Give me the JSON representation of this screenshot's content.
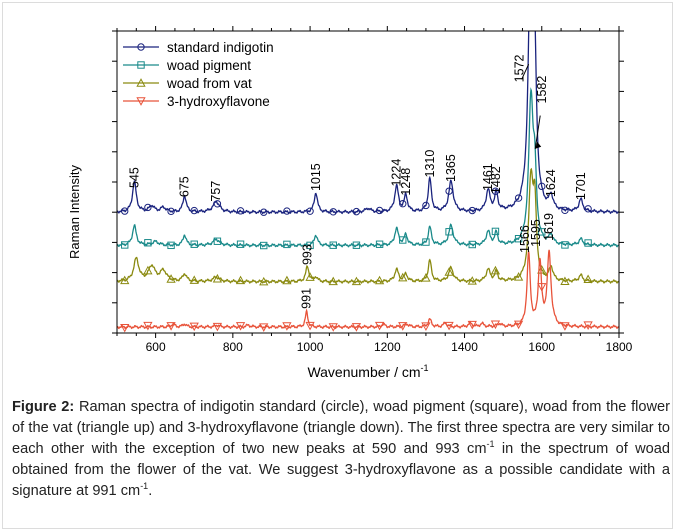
{
  "chart_data": {
    "type": "line",
    "xlabel": "Wavenumber / cm",
    "xlabel_sup": "-1",
    "ylabel": "Raman Intensity",
    "xlim": [
      500,
      1800
    ],
    "ylim": [
      0,
      10
    ],
    "x_ticks": [
      600,
      800,
      1000,
      1200,
      1400,
      1600,
      1800
    ],
    "y_ticks": [
      0,
      1,
      2,
      3,
      4,
      5,
      6,
      7,
      8,
      9,
      10
    ],
    "grid": false,
    "legend_position": "top-left",
    "series": [
      {
        "name": "standard indigotin",
        "color": "#1a237e",
        "marker": "circle",
        "baseline": 4.0,
        "peaks": [
          [
            545,
            1.0,
            6
          ],
          [
            590,
            0.2,
            8
          ],
          [
            620,
            0.15,
            8
          ],
          [
            675,
            0.55,
            5
          ],
          [
            757,
            0.35,
            10
          ],
          [
            1015,
            0.65,
            5
          ],
          [
            1150,
            0.12,
            8
          ],
          [
            1224,
            0.85,
            6
          ],
          [
            1248,
            0.55,
            5
          ],
          [
            1310,
            1.1,
            5
          ],
          [
            1365,
            1.0,
            7
          ],
          [
            1461,
            0.7,
            6
          ],
          [
            1482,
            0.6,
            5
          ],
          [
            1572,
            9.6,
            7
          ],
          [
            1582,
            3.5,
            5
          ],
          [
            1624,
            0.45,
            6
          ],
          [
            1701,
            0.4,
            6
          ]
        ]
      },
      {
        "name": "woad pigment",
        "color": "#1a8a8a",
        "marker": "square",
        "baseline": 2.9,
        "peaks": [
          [
            545,
            0.65,
            6
          ],
          [
            600,
            0.12,
            10
          ],
          [
            675,
            0.35,
            5
          ],
          [
            757,
            0.2,
            10
          ],
          [
            1015,
            0.35,
            5
          ],
          [
            1224,
            0.55,
            6
          ],
          [
            1248,
            0.35,
            5
          ],
          [
            1310,
            0.6,
            5
          ],
          [
            1365,
            0.65,
            7
          ],
          [
            1461,
            0.45,
            6
          ],
          [
            1482,
            0.4,
            5
          ],
          [
            1572,
            4.8,
            7
          ],
          [
            1582,
            1.9,
            5
          ],
          [
            1624,
            0.3,
            6
          ],
          [
            1701,
            0.2,
            6
          ]
        ]
      },
      {
        "name": "woad from vat",
        "color": "#8a8a10",
        "marker": "triangle-up",
        "baseline": 1.7,
        "peaks": [
          [
            550,
            0.75,
            8
          ],
          [
            590,
            0.5,
            10
          ],
          [
            620,
            0.35,
            10
          ],
          [
            675,
            0.25,
            6
          ],
          [
            757,
            0.15,
            10
          ],
          [
            993,
            0.5,
            5
          ],
          [
            1015,
            0.15,
            5
          ],
          [
            1224,
            0.4,
            6
          ],
          [
            1248,
            0.25,
            5
          ],
          [
            1310,
            0.7,
            5
          ],
          [
            1365,
            0.45,
            7
          ],
          [
            1461,
            0.4,
            6
          ],
          [
            1482,
            0.3,
            5
          ],
          [
            1572,
            3.3,
            7
          ],
          [
            1582,
            2.2,
            5
          ],
          [
            1624,
            0.45,
            6
          ],
          [
            1701,
            0.2,
            6
          ]
        ]
      },
      {
        "name": "3-hydroxyflavone",
        "color": "#e8533a",
        "marker": "triangle-down",
        "baseline": 0.2,
        "peaks": [
          [
            645,
            0.1,
            5
          ],
          [
            675,
            0.1,
            5
          ],
          [
            760,
            0.06,
            6
          ],
          [
            840,
            0.06,
            6
          ],
          [
            991,
            0.5,
            4
          ],
          [
            1190,
            0.08,
            6
          ],
          [
            1250,
            0.1,
            6
          ],
          [
            1310,
            0.25,
            5
          ],
          [
            1350,
            0.12,
            6
          ],
          [
            1415,
            0.12,
            6
          ],
          [
            1445,
            0.1,
            6
          ],
          [
            1490,
            0.1,
            6
          ],
          [
            1566,
            2.4,
            5
          ],
          [
            1595,
            2.1,
            5
          ],
          [
            1619,
            2.4,
            6
          ]
        ]
      }
    ],
    "peak_labels": [
      {
        "text": "545",
        "x": 545,
        "y": 4.8
      },
      {
        "text": "675",
        "x": 675,
        "y": 4.5
      },
      {
        "text": "757",
        "x": 757,
        "y": 4.35
      },
      {
        "text": "1015",
        "x": 1015,
        "y": 4.7
      },
      {
        "text": "1224",
        "x": 1224,
        "y": 4.85
      },
      {
        "text": "1248",
        "x": 1248,
        "y": 4.55
      },
      {
        "text": "1310",
        "x": 1310,
        "y": 5.15
      },
      {
        "text": "1365",
        "x": 1365,
        "y": 5.0
      },
      {
        "text": "1461",
        "x": 1461,
        "y": 4.7
      },
      {
        "text": "1482",
        "x": 1482,
        "y": 4.6
      },
      {
        "text": "1572",
        "x": 1542,
        "y": 8.3
      },
      {
        "text": "1582",
        "x": 1600,
        "y": 7.6
      },
      {
        "text": "1624",
        "x": 1624,
        "y": 4.5
      },
      {
        "text": "1701",
        "x": 1701,
        "y": 4.4
      },
      {
        "text": "993",
        "x": 993,
        "y": 2.25
      },
      {
        "text": "1566",
        "x": 1556,
        "y": 2.65
      },
      {
        "text": "1595",
        "x": 1585,
        "y": 2.85
      },
      {
        "text": "1619",
        "x": 1619,
        "y": 3.05
      },
      {
        "text": "991",
        "x": 991,
        "y": 0.8
      }
    ]
  },
  "caption": {
    "label": "Figure 2:",
    "text_1": " Raman spectra of indigotin standard (circle), woad pigment (square), woad from the flower of the vat (triangle up) and 3-hydroxyflavone (triangle down). The first three spectra are very similar to each other with the exception of two new peaks at 590 and 993 cm",
    "sup_1": "-1",
    "text_2": " in the spectrum of woad obtained from the flower of the vat. We suggest 3-hydroxyflavone as a possible candidate with a signature at 991 cm",
    "sup_2": "-1",
    "text_3": "."
  }
}
